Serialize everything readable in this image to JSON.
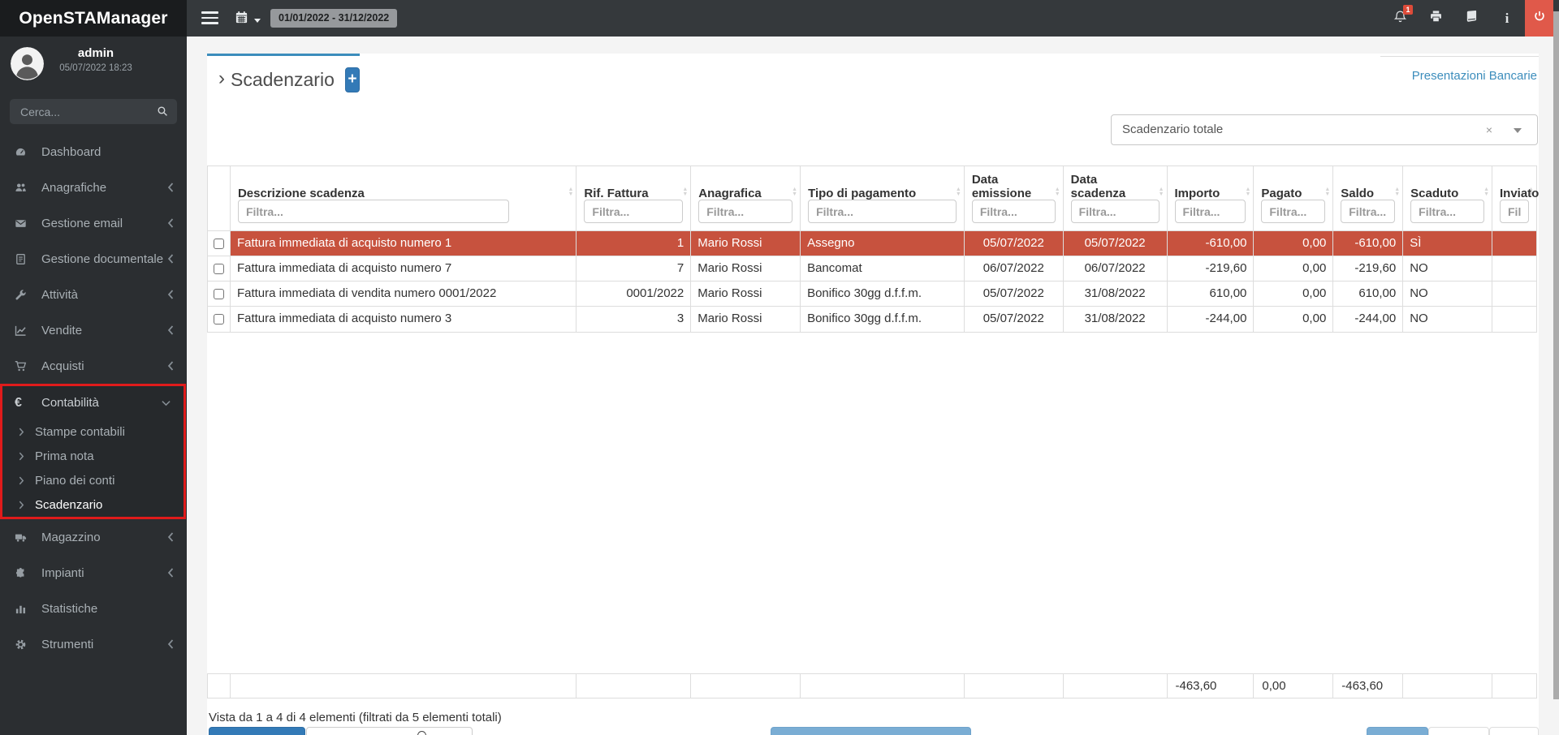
{
  "app_title": "OpenSTAManager",
  "topbar": {
    "date_range": "01/01/2022 - 31/12/2022",
    "notification_badge": "1"
  },
  "sidebar": {
    "user_name": "admin",
    "user_datetime": "05/07/2022 18:23",
    "search_placeholder": "Cerca...",
    "menu": [
      {
        "icon": "tachometer",
        "label": "Dashboard"
      },
      {
        "icon": "users",
        "label": "Anagrafiche",
        "chevron": "left"
      },
      {
        "icon": "envelope",
        "label": "Gestione email",
        "chevron": "left"
      },
      {
        "icon": "document",
        "label": "Gestione documentale",
        "chevron": "left"
      },
      {
        "icon": "wrench",
        "label": "Attività",
        "chevron": "left"
      },
      {
        "icon": "chart-line",
        "label": "Vendite",
        "chevron": "left"
      },
      {
        "icon": "cart",
        "label": "Acquisti",
        "chevron": "left"
      },
      {
        "icon": "euro",
        "label": "Contabilità",
        "chevron": "down",
        "expanded": true,
        "highlighted": true,
        "children": [
          {
            "label": "Stampe contabili"
          },
          {
            "label": "Prima nota"
          },
          {
            "label": "Piano dei conti"
          },
          {
            "label": "Scadenzario",
            "active": true
          }
        ]
      },
      {
        "icon": "truck",
        "label": "Magazzino",
        "chevron": "left"
      },
      {
        "icon": "puzzle",
        "label": "Impianti",
        "chevron": "left"
      },
      {
        "icon": "bar-chart",
        "label": "Statistiche"
      },
      {
        "icon": "gear",
        "label": "Strumenti",
        "chevron": "left"
      }
    ]
  },
  "page": {
    "title": "Scadenzario",
    "add_button_label": "+",
    "top_link": "Presentazioni Bancarie",
    "select_value": "Scadenzario totale",
    "select_clear": "×"
  },
  "table": {
    "filter_placeholder": "Filtra...",
    "columns": [
      {
        "key": "descrizione",
        "label": "Descrizione scadenza"
      },
      {
        "key": "rif_fattura",
        "label": "Rif. Fattura"
      },
      {
        "key": "anagrafica",
        "label": "Anagrafica"
      },
      {
        "key": "tipo_pagamento",
        "label": "Tipo di pagamento"
      },
      {
        "key": "data_emissione",
        "label": "Data emissione"
      },
      {
        "key": "data_scadenza",
        "label": "Data scadenza"
      },
      {
        "key": "importo",
        "label": "Importo"
      },
      {
        "key": "pagato",
        "label": "Pagato"
      },
      {
        "key": "saldo",
        "label": "Saldo"
      },
      {
        "key": "scaduto",
        "label": "Scaduto"
      },
      {
        "key": "inviato",
        "label": "Inviato"
      }
    ],
    "rows": [
      {
        "highlighted": true,
        "cells": [
          "Fattura immediata di acquisto numero 1",
          "1",
          "Mario Rossi",
          "Assegno",
          "05/07/2022",
          "05/07/2022",
          "-610,00",
          "0,00",
          "-610,00",
          "SÌ",
          ""
        ]
      },
      {
        "cells": [
          "Fattura immediata di acquisto numero 7",
          "7",
          "Mario Rossi",
          "Bancomat",
          "06/07/2022",
          "06/07/2022",
          "-219,60",
          "0,00",
          "-219,60",
          "NO",
          ""
        ]
      },
      {
        "cells": [
          "Fattura immediata di vendita numero 0001/2022",
          "0001/2022",
          "Mario Rossi",
          "Bonifico 30gg d.f.f.m.",
          "05/07/2022",
          "31/08/2022",
          "610,00",
          "0,00",
          "610,00",
          "NO",
          ""
        ]
      },
      {
        "cells": [
          "Fattura immediata di acquisto numero 3",
          "3",
          "Mario Rossi",
          "Bonifico 30gg d.f.f.m.",
          "05/07/2022",
          "31/08/2022",
          "-244,00",
          "0,00",
          "-244,00",
          "NO",
          ""
        ]
      }
    ],
    "footer_totals": {
      "importo": "-463,60",
      "pagato": "0,00",
      "saldo": "-463,60"
    },
    "info_text": "Vista da 1 a 4 di 4 elementi (filtrati da 5 elementi totali)"
  },
  "colors": {
    "accent_blue": "#3c8dbc",
    "button_blue": "#337ab7",
    "light_blue": "#7aadd4",
    "row_danger": "#c7523e",
    "power_red": "#e0594a",
    "highlight_red": "#e01b1b"
  }
}
